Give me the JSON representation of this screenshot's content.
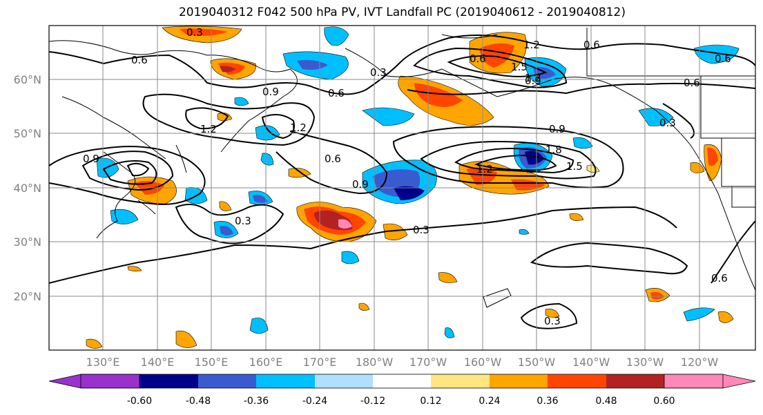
{
  "title": "2019040312 F042 500 hPa PV, IVT Landfall PC (2019040612 - 2019040812)",
  "latitude_labels": [
    "60°N",
    "50°N",
    "40°N",
    "30°N",
    "20°N"
  ],
  "longitude_labels": [
    "130°E",
    "140°E",
    "150°E",
    "160°E",
    "170°E",
    "180°W",
    "170°W",
    "160°W",
    "150°W",
    "140°W",
    "130°W",
    "120°W"
  ],
  "contour_labels": [
    "0.3",
    "0.6",
    "0.6",
    "1.2",
    "1.5",
    "0.9",
    "0.6",
    "0.3",
    "0.6",
    "1.2",
    "0.9",
    "0.9",
    "0.6",
    "0.9",
    "1.5",
    "0.3",
    "0.3",
    "0.6",
    "0.3",
    "1.2",
    "0.6",
    "0.6",
    "0.9",
    "1.2",
    "1.8",
    "1.2",
    "0.3"
  ],
  "colorbar": {
    "tick_labels": [
      "-0.60",
      "-0.48",
      "-0.36",
      "-0.24",
      "-0.12",
      "0.12",
      "0.24",
      "0.36",
      "0.48",
      "0.60"
    ],
    "colors": [
      "#9932cc",
      "#00008b",
      "#3a5bd0",
      "#00bfff",
      "#b0e0ff",
      "#ffffff",
      "#ffe680",
      "#ffa500",
      "#ff4500",
      "#b22222",
      "#ff88b8"
    ]
  }
}
